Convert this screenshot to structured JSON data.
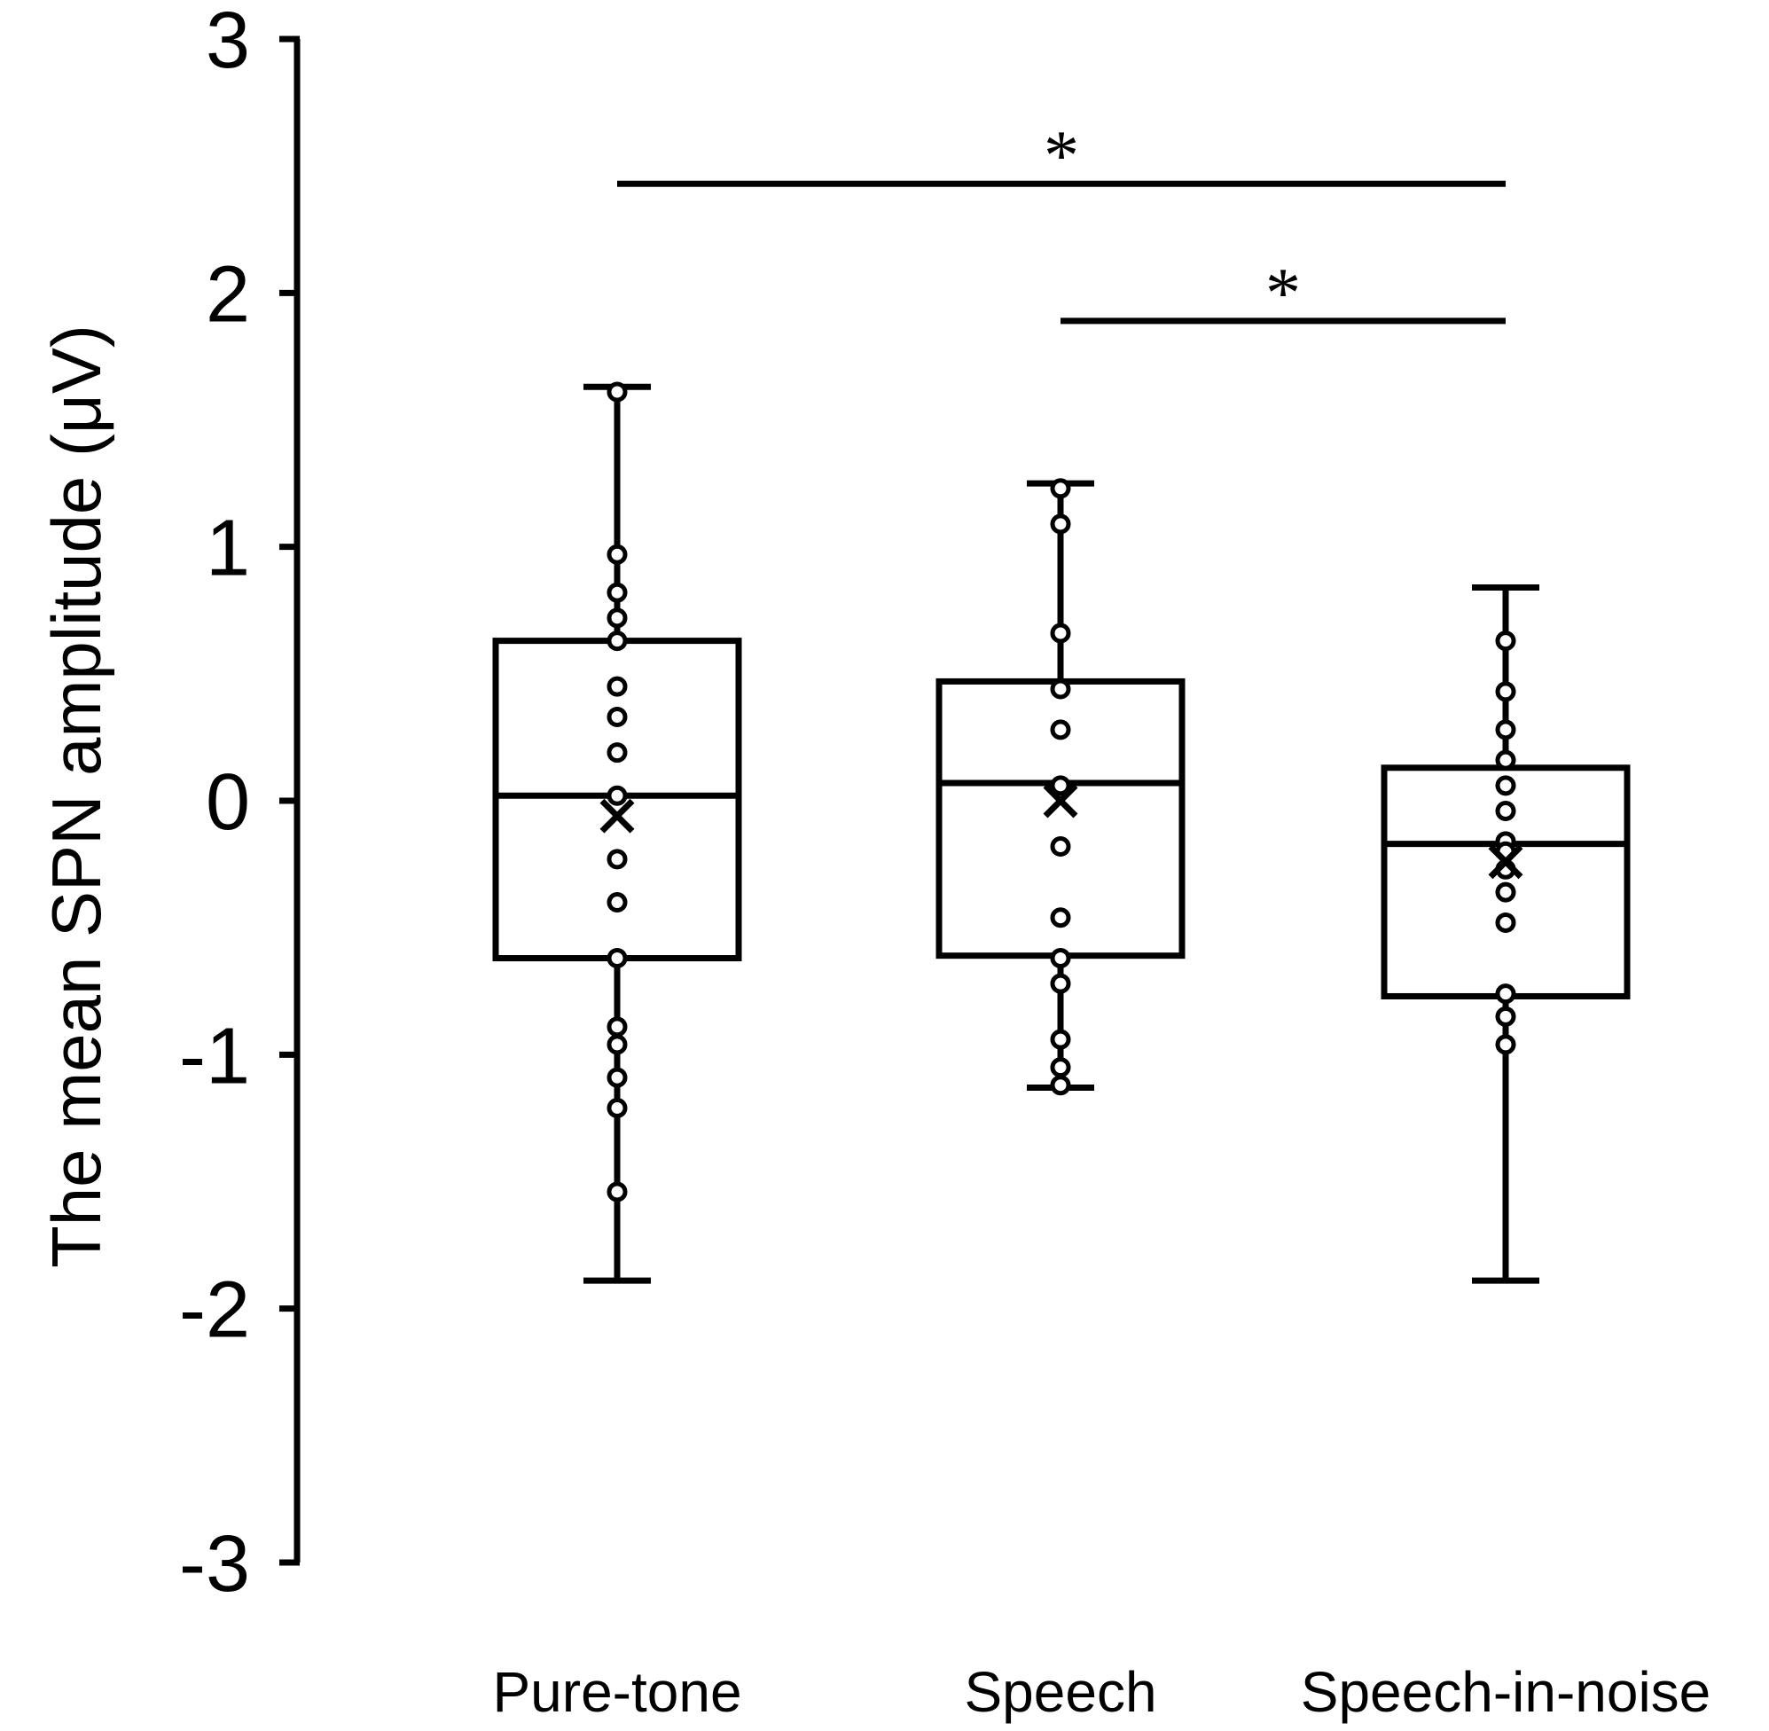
{
  "chart_data": {
    "type": "box",
    "title": "",
    "xlabel": "",
    "ylabel": "The mean SPN amplitude (μV)",
    "ylim": [
      -3,
      3
    ],
    "yticks": [
      "-3",
      "-2",
      "-1",
      "0",
      "1",
      "2",
      "3"
    ],
    "grid": false,
    "legend": "none",
    "categories": [
      "Pure-tone",
      "Speech",
      "Speech-in-noise"
    ],
    "boxes": [
      {
        "category": "Pure-tone",
        "whisker_low": -1.89,
        "q1": -0.62,
        "median": 0.02,
        "q3": 0.63,
        "whisker_high": 1.63,
        "mean": -0.06,
        "points": [
          1.61,
          0.97,
          0.82,
          0.72,
          0.63,
          0.45,
          0.33,
          0.19,
          0.02,
          -0.23,
          -0.4,
          -0.62,
          -0.89,
          -0.96,
          -1.09,
          -1.21,
          -1.54
        ]
      },
      {
        "category": "Speech",
        "whisker_low": -1.13,
        "q1": -0.61,
        "median": 0.07,
        "q3": 0.47,
        "whisker_high": 1.25,
        "mean": 0.0,
        "points": [
          1.23,
          1.09,
          0.66,
          0.44,
          0.28,
          0.06,
          -0.18,
          -0.46,
          -0.62,
          -0.72,
          -0.94,
          -1.05,
          -1.12
        ]
      },
      {
        "category": "Speech-in-noise",
        "whisker_low": -1.89,
        "q1": -0.77,
        "median": -0.17,
        "q3": 0.13,
        "whisker_high": 0.84,
        "mean": -0.24,
        "points": [
          0.63,
          0.43,
          0.28,
          0.16,
          0.06,
          -0.04,
          -0.16,
          -0.2,
          -0.27,
          -0.36,
          -0.48,
          -0.76,
          -0.85,
          -0.96
        ]
      }
    ],
    "significance": [
      {
        "from": "Pure-tone",
        "to": "Speech-in-noise",
        "y": 2.43,
        "label": "*"
      },
      {
        "from": "Speech",
        "to": "Speech-in-noise",
        "y": 1.89,
        "label": "*"
      }
    ]
  }
}
